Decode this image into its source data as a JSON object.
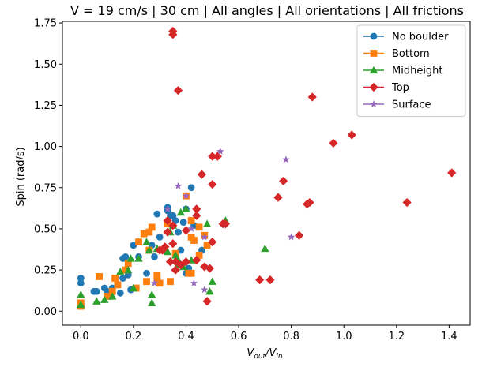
{
  "chart_data": {
    "type": "scatter",
    "title": "V = 19 cm/s | 30 cm | All angles | All orientations | All frictions",
    "xlabel": "V_out/V_in",
    "xlabel_main": "V",
    "xlabel_sub1": "out",
    "xlabel_slash": "/V",
    "xlabel_sub2": "in",
    "ylabel": "Spin (rad/s)",
    "xlim": [
      -0.07,
      1.48
    ],
    "ylim": [
      -0.085,
      1.76
    ],
    "xticks": [
      0.0,
      0.2,
      0.4,
      0.6,
      0.8,
      1.0,
      1.2,
      1.4
    ],
    "xtick_labels": [
      "0.0",
      "0.2",
      "0.4",
      "0.6",
      "0.8",
      "1.0",
      "1.2",
      "1.4"
    ],
    "yticks": [
      0.0,
      0.25,
      0.5,
      0.75,
      1.0,
      1.25,
      1.5,
      1.75
    ],
    "ytick_labels": [
      "0.00",
      "0.25",
      "0.50",
      "0.75",
      "1.00",
      "1.25",
      "1.50",
      "1.75"
    ],
    "grid": false,
    "legend_position": "top-right",
    "series": [
      {
        "name": "No boulder",
        "marker": "circle",
        "color": "#1f77b4",
        "points": [
          [
            0.0,
            0.2
          ],
          [
            0.0,
            0.17
          ],
          [
            0.0,
            0.03
          ],
          [
            0.05,
            0.12
          ],
          [
            0.06,
            0.12
          ],
          [
            0.09,
            0.14
          ],
          [
            0.1,
            0.12
          ],
          [
            0.11,
            0.1
          ],
          [
            0.12,
            0.14
          ],
          [
            0.15,
            0.11
          ],
          [
            0.16,
            0.2
          ],
          [
            0.16,
            0.32
          ],
          [
            0.17,
            0.33
          ],
          [
            0.18,
            0.22
          ],
          [
            0.2,
            0.4
          ],
          [
            0.22,
            0.42
          ],
          [
            0.25,
            0.23
          ],
          [
            0.29,
            0.59
          ],
          [
            0.3,
            0.45
          ],
          [
            0.33,
            0.61
          ],
          [
            0.33,
            0.63
          ],
          [
            0.34,
            0.58
          ],
          [
            0.35,
            0.58
          ],
          [
            0.36,
            0.55
          ],
          [
            0.37,
            0.48
          ],
          [
            0.39,
            0.54
          ],
          [
            0.4,
            0.62
          ],
          [
            0.42,
            0.75
          ],
          [
            0.43,
            0.52
          ],
          [
            0.38,
            0.37
          ],
          [
            0.41,
            0.26
          ],
          [
            0.4,
            0.23
          ],
          [
            0.46,
            0.37
          ],
          [
            0.19,
            0.13
          ],
          [
            0.22,
            0.33
          ],
          [
            0.28,
            0.33
          ],
          [
            0.31,
            0.37
          ],
          [
            0.29,
            0.2
          ],
          [
            0.27,
            0.4
          ]
        ]
      },
      {
        "name": "Bottom",
        "marker": "square",
        "color": "#ff7f0e",
        "points": [
          [
            0.0,
            0.05
          ],
          [
            0.0,
            0.03
          ],
          [
            0.07,
            0.21
          ],
          [
            0.1,
            0.09
          ],
          [
            0.12,
            0.12
          ],
          [
            0.13,
            0.2
          ],
          [
            0.14,
            0.16
          ],
          [
            0.17,
            0.25
          ],
          [
            0.18,
            0.29
          ],
          [
            0.22,
            0.42
          ],
          [
            0.24,
            0.47
          ],
          [
            0.26,
            0.48
          ],
          [
            0.27,
            0.51
          ],
          [
            0.26,
            0.37
          ],
          [
            0.29,
            0.22
          ],
          [
            0.3,
            0.17
          ],
          [
            0.33,
            0.53
          ],
          [
            0.36,
            0.35
          ],
          [
            0.4,
            0.7
          ],
          [
            0.42,
            0.55
          ],
          [
            0.42,
            0.45
          ],
          [
            0.43,
            0.43
          ],
          [
            0.45,
            0.51
          ],
          [
            0.45,
            0.34
          ],
          [
            0.47,
            0.46
          ],
          [
            0.48,
            0.4
          ],
          [
            0.41,
            0.23
          ],
          [
            0.42,
            0.23
          ],
          [
            0.34,
            0.18
          ],
          [
            0.21,
            0.14
          ],
          [
            0.25,
            0.18
          ],
          [
            0.29,
            0.19
          ]
        ]
      },
      {
        "name": "Midheight",
        "marker": "triangle",
        "color": "#2ca02c",
        "points": [
          [
            0.0,
            0.1
          ],
          [
            0.0,
            0.04
          ],
          [
            0.06,
            0.06
          ],
          [
            0.09,
            0.07
          ],
          [
            0.12,
            0.09
          ],
          [
            0.15,
            0.24
          ],
          [
            0.18,
            0.25
          ],
          [
            0.19,
            0.32
          ],
          [
            0.2,
            0.14
          ],
          [
            0.22,
            0.32
          ],
          [
            0.25,
            0.42
          ],
          [
            0.26,
            0.37
          ],
          [
            0.27,
            0.05
          ],
          [
            0.27,
            0.1
          ],
          [
            0.29,
            0.38
          ],
          [
            0.31,
            0.37
          ],
          [
            0.33,
            0.36
          ],
          [
            0.34,
            0.48
          ],
          [
            0.35,
            0.52
          ],
          [
            0.36,
            0.34
          ],
          [
            0.37,
            0.28
          ],
          [
            0.38,
            0.6
          ],
          [
            0.39,
            0.27
          ],
          [
            0.4,
            0.62
          ],
          [
            0.42,
            0.31
          ],
          [
            0.48,
            0.53
          ],
          [
            0.49,
            0.12
          ],
          [
            0.5,
            0.18
          ],
          [
            0.55,
            0.55
          ],
          [
            0.7,
            0.38
          ],
          [
            0.37,
            0.31
          ]
        ]
      },
      {
        "name": "Top",
        "marker": "diamond",
        "color": "#d62728",
        "points": [
          [
            0.35,
            1.7
          ],
          [
            0.35,
            1.68
          ],
          [
            0.37,
            1.34
          ],
          [
            0.88,
            1.3
          ],
          [
            1.03,
            1.07
          ],
          [
            0.96,
            1.02
          ],
          [
            1.41,
            0.84
          ],
          [
            0.5,
            0.94
          ],
          [
            0.52,
            0.94
          ],
          [
            0.46,
            0.83
          ],
          [
            0.5,
            0.77
          ],
          [
            0.77,
            0.79
          ],
          [
            0.75,
            0.69
          ],
          [
            0.86,
            0.65
          ],
          [
            0.87,
            0.66
          ],
          [
            1.24,
            0.66
          ],
          [
            0.54,
            0.53
          ],
          [
            0.55,
            0.53
          ],
          [
            0.44,
            0.62
          ],
          [
            0.44,
            0.58
          ],
          [
            0.35,
            0.52
          ],
          [
            0.33,
            0.55
          ],
          [
            0.33,
            0.48
          ],
          [
            0.4,
            0.49
          ],
          [
            0.5,
            0.42
          ],
          [
            0.83,
            0.46
          ],
          [
            0.34,
            0.3
          ],
          [
            0.36,
            0.3
          ],
          [
            0.36,
            0.25
          ],
          [
            0.38,
            0.28
          ],
          [
            0.4,
            0.3
          ],
          [
            0.44,
            0.31
          ],
          [
            0.47,
            0.27
          ],
          [
            0.49,
            0.26
          ],
          [
            0.31,
            0.37
          ],
          [
            0.32,
            0.39
          ],
          [
            0.3,
            0.37
          ],
          [
            0.35,
            0.41
          ],
          [
            0.68,
            0.19
          ],
          [
            0.72,
            0.19
          ],
          [
            0.48,
            0.06
          ]
        ]
      },
      {
        "name": "Surface",
        "marker": "star",
        "color": "#9467bd",
        "points": [
          [
            0.53,
            0.97
          ],
          [
            0.78,
            0.92
          ],
          [
            0.37,
            0.76
          ],
          [
            0.4,
            0.7
          ],
          [
            0.33,
            0.62
          ],
          [
            0.47,
            0.45
          ],
          [
            0.8,
            0.45
          ],
          [
            0.43,
            0.17
          ],
          [
            0.47,
            0.13
          ],
          [
            0.28,
            0.17
          ],
          [
            0.42,
            0.5
          ]
        ]
      }
    ]
  }
}
